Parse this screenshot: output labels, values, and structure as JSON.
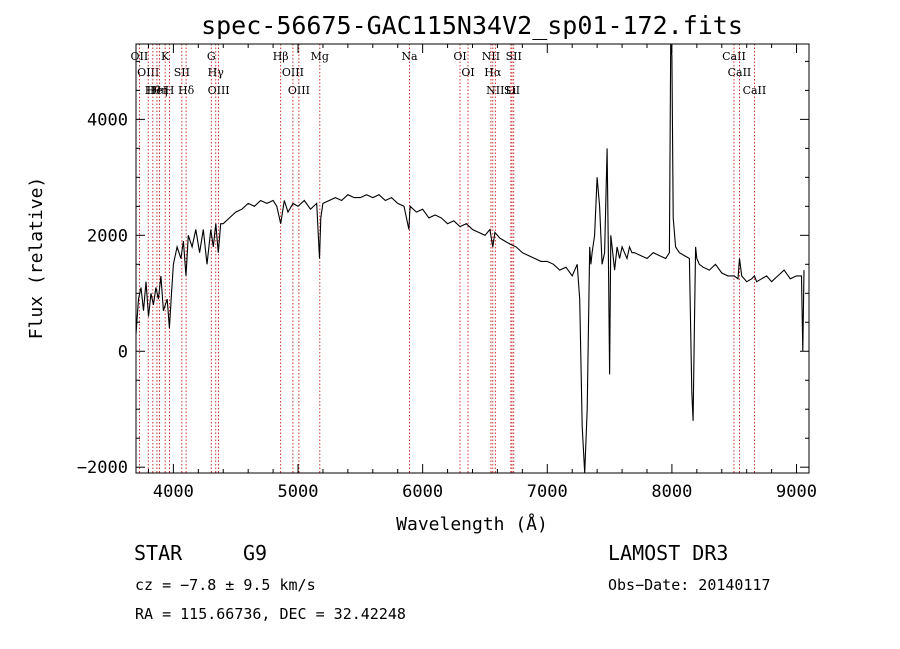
{
  "chart_data": {
    "type": "line",
    "title": "spec-56675-GAC115N34V2_sp01-172.fits",
    "xlabel": "Wavelength (Å)",
    "ylabel": "Flux (relative)",
    "xlim": [
      3700,
      9100
    ],
    "ylim": [
      -2100,
      5300
    ],
    "x_ticks": [
      4000,
      5000,
      6000,
      7000,
      8000,
      9000
    ],
    "y_ticks": [
      -2000,
      0,
      2000,
      4000
    ],
    "x_tick_labels": [
      "4000",
      "5000",
      "6000",
      "7000",
      "8000",
      "9000"
    ],
    "y_tick_labels": [
      "−2000",
      "0",
      "2000",
      "4000"
    ],
    "series": [
      {
        "name": "flux",
        "x": [
          3700,
          3720,
          3740,
          3760,
          3780,
          3800,
          3820,
          3840,
          3860,
          3880,
          3900,
          3920,
          3935,
          3950,
          3968,
          3985,
          4000,
          4030,
          4060,
          4080,
          4101,
          4120,
          4150,
          4180,
          4210,
          4240,
          4270,
          4300,
          4320,
          4340,
          4360,
          4380,
          4400,
          4450,
          4500,
          4550,
          4600,
          4650,
          4700,
          4750,
          4800,
          4830,
          4861,
          4890,
          4920,
          4960,
          5000,
          5050,
          5100,
          5150,
          5172,
          5183,
          5200,
          5250,
          5300,
          5350,
          5400,
          5450,
          5500,
          5550,
          5600,
          5650,
          5700,
          5750,
          5800,
          5850,
          5890,
          5895,
          5900,
          5950,
          6000,
          6050,
          6100,
          6150,
          6200,
          6250,
          6300,
          6350,
          6400,
          6450,
          6500,
          6540,
          6563,
          6580,
          6620,
          6660,
          6700,
          6750,
          6800,
          6850,
          6900,
          6950,
          7000,
          7050,
          7100,
          7150,
          7200,
          7240,
          7260,
          7280,
          7300,
          7320,
          7340,
          7350,
          7360,
          7380,
          7400,
          7420,
          7440,
          7460,
          7480,
          7490,
          7500,
          7510,
          7520,
          7540,
          7560,
          7580,
          7600,
          7620,
          7640,
          7660,
          7680,
          7700,
          7750,
          7800,
          7850,
          7900,
          7950,
          7980,
          7990,
          8000,
          8010,
          8030,
          8060,
          8100,
          8140,
          8160,
          8170,
          8180,
          8190,
          8200,
          8220,
          8250,
          8300,
          8350,
          8400,
          8450,
          8500,
          8530,
          8542,
          8560,
          8600,
          8640,
          8662,
          8680,
          8720,
          8760,
          8800,
          8850,
          8900,
          8950,
          9000,
          9040,
          9050,
          9060
        ],
        "values": [
          300,
          900,
          1100,
          700,
          1200,
          600,
          1000,
          800,
          1100,
          900,
          1300,
          700,
          800,
          900,
          400,
          1000,
          1500,
          1800,
          1600,
          1900,
          1300,
          2000,
          1800,
          2100,
          1700,
          2100,
          1500,
          2100,
          1800,
          2200,
          1700,
          2200,
          2200,
          2300,
          2400,
          2450,
          2550,
          2500,
          2600,
          2550,
          2600,
          2500,
          2200,
          2600,
          2400,
          2550,
          2500,
          2600,
          2450,
          2550,
          1600,
          2300,
          2550,
          2600,
          2650,
          2600,
          2700,
          2650,
          2650,
          2700,
          2650,
          2700,
          2600,
          2650,
          2550,
          2500,
          2100,
          2350,
          2500,
          2400,
          2450,
          2300,
          2350,
          2300,
          2200,
          2250,
          2150,
          2200,
          2100,
          2050,
          2000,
          2100,
          1800,
          2050,
          1950,
          1900,
          1850,
          1800,
          1700,
          1650,
          1600,
          1550,
          1550,
          1500,
          1400,
          1450,
          1300,
          1500,
          900,
          -1300,
          -2100,
          -1000,
          1800,
          1500,
          1700,
          2000,
          3000,
          2500,
          1500,
          1700,
          3500,
          1800,
          -400,
          2000,
          1800,
          1400,
          1800,
          1600,
          1800,
          1700,
          1600,
          1800,
          1700,
          1700,
          1650,
          1600,
          1700,
          1650,
          1600,
          1700,
          5300,
          5100,
          2300,
          1800,
          1700,
          1650,
          1600,
          -700,
          -1200,
          300,
          1800,
          1600,
          1500,
          1450,
          1400,
          1500,
          1350,
          1300,
          1300,
          1250,
          1600,
          1300,
          1200,
          1250,
          1300,
          1200,
          1250,
          1300,
          1200,
          1300,
          1400,
          1250,
          1300,
          1300,
          0,
          1400
        ]
      }
    ],
    "line_markers": [
      {
        "w": 3727,
        "label": "OII"
      },
      {
        "w": 3798,
        "label": "OIII"
      },
      {
        "w": 3835,
        "label": "Hθ"
      },
      {
        "w": 3868,
        "label": "HeI"
      },
      {
        "w": 3889,
        "label": "Hη"
      },
      {
        "w": 3934,
        "label": "K"
      },
      {
        "w": 3969,
        "label": "H"
      },
      {
        "w": 4068,
        "label": "SII"
      },
      {
        "w": 4102,
        "label": "Hδ"
      },
      {
        "w": 4304,
        "label": "G"
      },
      {
        "w": 4340,
        "label": "Hγ"
      },
      {
        "w": 4363,
        "label": "OIII"
      },
      {
        "w": 4861,
        "label": "Hβ"
      },
      {
        "w": 4959,
        "label": "OIII"
      },
      {
        "w": 5007,
        "label": "OIII"
      },
      {
        "w": 5175,
        "label": "Mg"
      },
      {
        "w": 5894,
        "label": "Na"
      },
      {
        "w": 6300,
        "label": "OI"
      },
      {
        "w": 6364,
        "label": "OI"
      },
      {
        "w": 6548,
        "label": "NII"
      },
      {
        "w": 6563,
        "label": "Hα"
      },
      {
        "w": 6583,
        "label": "NII"
      },
      {
        "w": 6708,
        "label": "Li"
      },
      {
        "w": 6717,
        "label": "SII"
      },
      {
        "w": 6731,
        "label": "SII"
      },
      {
        "w": 8498,
        "label": "CaII"
      },
      {
        "w": 8542,
        "label": "CaII"
      },
      {
        "w": 8662,
        "label": "CaII"
      }
    ]
  },
  "info": {
    "obj_class": "STAR",
    "subclass": "G9",
    "survey": "LAMOST DR3",
    "cz": "cz = −7.8 ± 9.5 km/s",
    "obs_date": "Obs−Date: 20140117",
    "radec": "RA = 115.66736, DEC =  32.42248"
  }
}
